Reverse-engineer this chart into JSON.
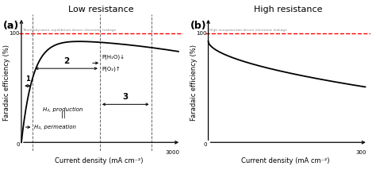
{
  "panel_a_title": "Low resistance",
  "panel_b_title": "High resistance",
  "panel_a_label": "(a)",
  "panel_b_label": "(b)",
  "dashed_line_color": "#FF0000",
  "curve_color": "#000000",
  "vline_color": "#666666",
  "xlabel_a": "Current density (mA cm⁻²) 3000",
  "xlabel_b": "Current density (mA cm⁻²)",
  "xmax_b_label": "300",
  "ylabel": "Faradaic efficiency (%)",
  "thermo_label": "Thermodynamic equilibrium-driven electronic leakage",
  "high_overp_label": "High overpotential-driven electronic leakage",
  "region1_label": "1",
  "region2_label": "2",
  "region3_label": "3",
  "h2_prod_label": "H₂, production",
  "h2_perm_label": "H₂, permeation",
  "ph2o_label": "P(H₂O)↓",
  "po2_label": "P(O₂)↑",
  "background_color": "#FFFFFF",
  "font_size_title": 8,
  "font_size_annotation": 6,
  "font_size_axis_label": 6,
  "font_size_panel_label": 9,
  "font_size_tick": 6,
  "font_size_small": 5
}
